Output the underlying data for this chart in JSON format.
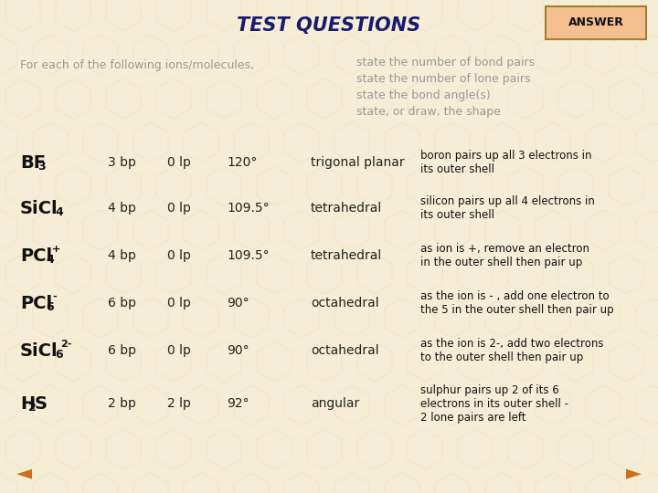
{
  "bg_color": "#f5edd6",
  "title": "TEST QUESTIONS",
  "title_color": "#1a1a6e",
  "title_fontsize": 15,
  "answer_box_text": "ANSWER",
  "answer_box_bg": "#f5c090",
  "answer_box_border": "#a08030",
  "intro_left": "For each of the following ions/molecules,",
  "intro_right_lines": [
    "state the number of bond pairs",
    "state the number of lone pairs",
    "state the bond angle(s)",
    "state, or draw, the shape"
  ],
  "intro_color": "#999999",
  "rows": [
    {
      "formula_main": "BF",
      "formula_sub": "3",
      "formula_sup": "",
      "formula_after": "",
      "bp": "3 bp",
      "lp": "0 lp",
      "angle": "120°",
      "shape": "trigonal planar",
      "note_lines": [
        "boron pairs up all 3 electrons in",
        "its outer shell"
      ]
    },
    {
      "formula_main": "SiCl",
      "formula_sub": "4",
      "formula_sup": "",
      "formula_after": "",
      "bp": "4 bp",
      "lp": "0 lp",
      "angle": "109.5°",
      "shape": "tetrahedral",
      "note_lines": [
        "silicon pairs up all 4 electrons in",
        "its outer shell"
      ]
    },
    {
      "formula_main": "PCl",
      "formula_sub": "4",
      "formula_sup": "+",
      "formula_after": "",
      "bp": "4 bp",
      "lp": "0 lp",
      "angle": "109.5°",
      "shape": "tetrahedral",
      "note_lines": [
        "as ion is +, remove an electron",
        "in the outer shell then pair up"
      ]
    },
    {
      "formula_main": "PCl",
      "formula_sub": "6",
      "formula_sup": "-",
      "formula_after": "",
      "bp": "6 bp",
      "lp": "0 lp",
      "angle": "90°",
      "shape": "octahedral",
      "note_lines": [
        "as the ion is - , add one electron to",
        "the 5 in the outer shell then pair up"
      ]
    },
    {
      "formula_main": "SiCl",
      "formula_sub": "6",
      "formula_sup": "2-",
      "formula_after": "",
      "bp": "6 bp",
      "lp": "0 lp",
      "angle": "90°",
      "shape": "octahedral",
      "note_lines": [
        "as the ion is 2-, add two electrons",
        "to the outer shell then pair up"
      ]
    },
    {
      "formula_main": "H",
      "formula_sub": "2",
      "formula_sup": "",
      "formula_after": "S",
      "bp": "2 bp",
      "lp": "2 lp",
      "angle": "92°",
      "shape": "angular",
      "note_lines": [
        "sulphur pairs up 2 of its 6",
        "electrons in its outer shell -",
        "2 lone pairs are left"
      ]
    }
  ],
  "formula_color": "#111111",
  "data_color": "#222222",
  "note_color": "#111111",
  "nav_arrow_color": "#c87020"
}
